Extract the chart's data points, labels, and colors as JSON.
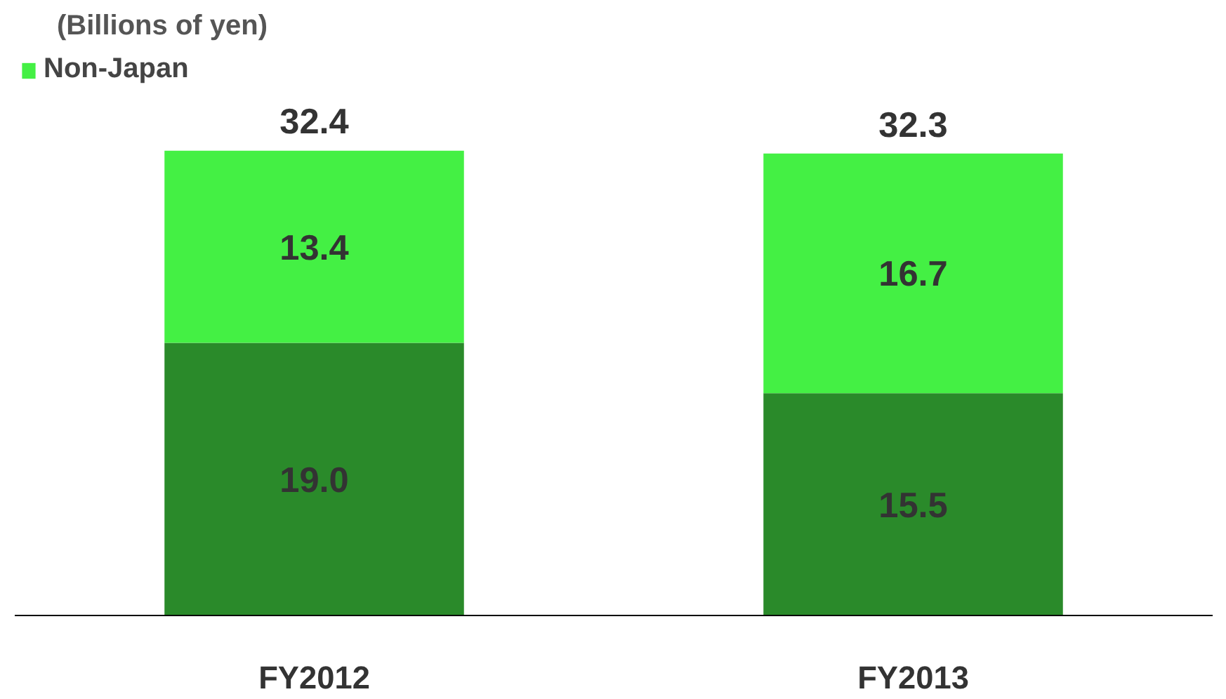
{
  "chart_data": {
    "type": "bar",
    "stacked": true,
    "title": "(Billions of yen)",
    "categories": [
      "FY2012",
      "FY2013"
    ],
    "series": [
      {
        "color": "#2a8a2a",
        "values": [
          19.0,
          15.5
        ],
        "value_labels": [
          "19.0",
          "15.5"
        ]
      },
      {
        "name": "Non-Japan",
        "color": "#44f044",
        "values": [
          13.4,
          16.7
        ],
        "value_labels": [
          "13.4",
          "16.7"
        ]
      }
    ],
    "totals": [
      "32.4",
      "32.3"
    ],
    "legend": "top left",
    "grid": false
  }
}
